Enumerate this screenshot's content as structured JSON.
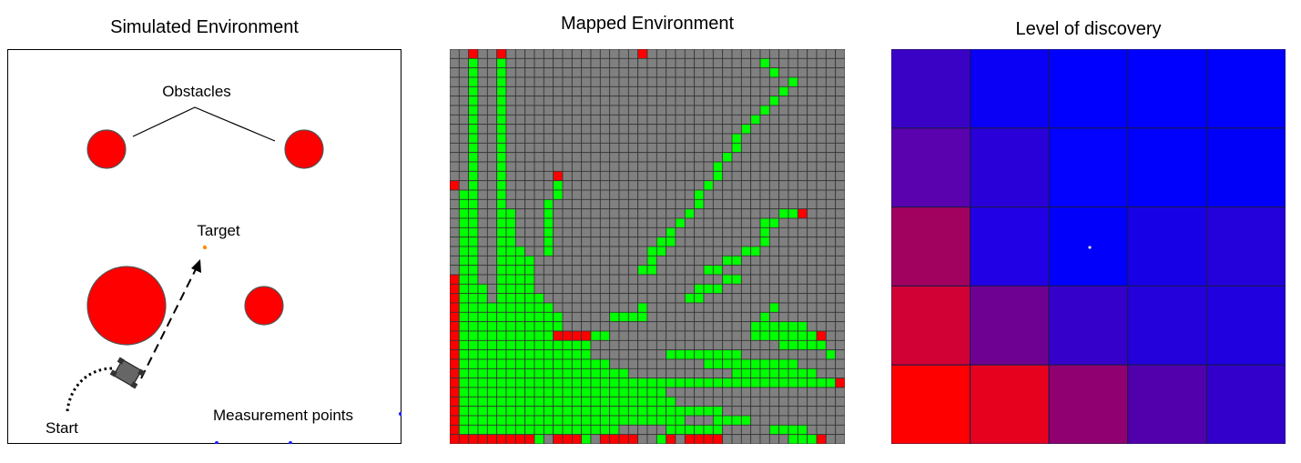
{
  "panels": {
    "simulated": {
      "title": "Simulated Environment",
      "labels": {
        "obstacles": "Obstacles",
        "target": "Target",
        "start": "Start",
        "measurement": "Measurement points"
      }
    },
    "mapped": {
      "title": "Mapped Environment",
      "grid_size": 42,
      "colors": {
        "unknown": "#808080",
        "free": "#00ff00",
        "occupied": "#ff0000",
        "line": "#333333"
      },
      "rows": [
        "..O..O..............O.....................",
        "..G..G...........................G........",
        "..G..G............................G.......",
        "..G..G..............................G.....",
        "..G..G.............................G......",
        "..G..G............................G.......",
        "..G..G...........................G........",
        "..G..G..........................G.........",
        "..G..G.........................G..........",
        "..G..G........................G...........",
        "..G..G........................G...........",
        "..G..G.......................G............",
        "..G..G......................G.............",
        "..G..G.....O................G.............",
        "O.G..G.....G...............G..............",
        ".GG..G.....G..............G...............",
        ".GG..G....G...............G...............",
        ".GG..GG...G..............G.........GGO....",
        ".GG..GG...G.............G........GG.......",
        ".GG..GG...G............G.........G........",
        ".GG..GG...G...........GG.........G........",
        ".GG..GGG..G..........GG........GG.........",
        ".GG..GGGG............G.......GG...........",
        ".GG..GGGG...........GG.....GG.............",
        "OGG..GGGG....................GG...........",
        "OGGG.GGGG.................GGG.............",
        "OGGG.GGGGG...............GG...............",
        "OGGGGGGGGGG.........G.............G.......",
        "OGGGGGGGGGGG.....GGGG............G........",
        "OGGGGGGGGGGG....................GGGGGG....",
        "OGGGGGGGGGGOOOOGG...............GGGGGGGO..",
        "OGGGGGGGGGGGGGG....................GGGGG..",
        "OGGGGGGGGGGGGGG........GGGGGGGG.........G.",
        "OGGGGGGGGGGGGGGGG..........GGGGGGGGGG.....",
        "OGGGGGGGGGGGGGGGGGG...........GGGGGGGGG...",
        "OGGGGGGGGGGGGGGGGGGGGGGGGGGGGGGGGGGGGGGGGO",
        "OGGGGGGGGGGGGGGGGGGGGGG...................",
        "OGGGGGGGGGGGGGGGGGGGGGGG..................",
        "OGGGGGGGGGGGGGGGGGGGGGGGGGGGG.............",
        "OGGGGGGGGGGGGGGGGGGGGGGGG...GGGG..........",
        "OGGGGGGGGGGGGGGGGG.....GGGGGG.....GGGG....",
        "OOOOOOOOOG.OOOG.OOOO..GO.OOOO.......GGGO.."
      ]
    },
    "discovery": {
      "title": "Level of discovery",
      "cells": [
        [
          "#3a02c5",
          "#0a00f5",
          "#0000fe",
          "#0000ff",
          "#0000fd"
        ],
        [
          "#5a02ad",
          "#2a00d8",
          "#0202fe",
          "#0000fd",
          "#0000f8"
        ],
        [
          "#a1015f",
          "#2200e5",
          "#0000fb",
          "#1800e6",
          "#2400da"
        ],
        [
          "#d20135",
          "#6f0192",
          "#3501ca",
          "#2400da",
          "#2000de"
        ],
        [
          "#ff0000",
          "#e6011f",
          "#910070",
          "#5200ac",
          "#3300cb"
        ]
      ]
    }
  }
}
